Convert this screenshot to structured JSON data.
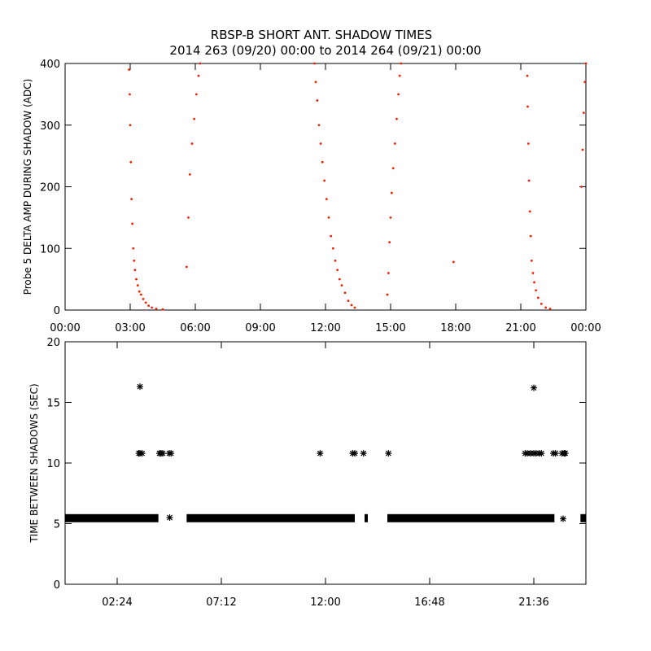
{
  "title_line1": "RBSP-B SHORT ANT. SHADOW TIMES",
  "title_line2": "2014 263 (09/20) 00:00 to 2014 264 (09/21) 00:00",
  "colors": {
    "points": "#ee2200",
    "stars": "#000000",
    "axes": "#000000"
  },
  "chart_data": [
    {
      "type": "scatter",
      "ylabel": "Probe 5 DELTA AMP DURING SHADOW (ADC)",
      "xlabel": "",
      "xlim": [
        0,
        24
      ],
      "ylim": [
        0,
        400
      ],
      "x_unit": "hours",
      "xtick_values": [
        0,
        3,
        6,
        9,
        12,
        15,
        18,
        21,
        24
      ],
      "xtick_labels": [
        "00:00",
        "03:00",
        "06:00",
        "09:00",
        "12:00",
        "15:00",
        "18:00",
        "21:00",
        "00:00"
      ],
      "ytick_values": [
        0,
        100,
        200,
        300,
        400
      ],
      "ytick_labels": [
        "0",
        "100",
        "200",
        "300",
        "400"
      ],
      "marker": "dot",
      "series": [
        {
          "color": "#ee2200",
          "x": [
            2.95,
            2.98,
            3.0,
            3.03,
            3.06,
            3.1,
            3.14,
            3.18,
            3.22,
            3.28,
            3.35,
            3.42,
            3.5,
            3.6,
            3.72,
            3.85,
            4.0,
            4.2,
            4.5,
            5.6,
            5.68,
            5.75,
            5.85,
            5.95,
            6.05,
            6.15,
            6.22,
            11.5,
            11.55,
            11.62,
            11.7,
            11.78,
            11.86,
            11.95,
            12.05,
            12.15,
            12.25,
            12.35,
            12.45,
            12.55,
            12.65,
            12.75,
            12.9,
            13.05,
            13.2,
            13.35,
            14.85,
            14.9,
            14.95,
            15.0,
            15.05,
            15.12,
            15.2,
            15.28,
            15.36,
            15.42,
            15.48,
            17.9,
            21.3,
            21.32,
            21.35,
            21.38,
            21.42,
            21.46,
            21.5,
            21.56,
            21.62,
            21.7,
            21.8,
            21.95,
            22.15,
            22.35,
            23.8,
            23.85,
            23.9,
            23.95,
            24.0
          ],
          "y": [
            390,
            350,
            300,
            240,
            180,
            140,
            100,
            80,
            65,
            50,
            40,
            30,
            25,
            18,
            12,
            7,
            4,
            2,
            1,
            70,
            150,
            220,
            270,
            310,
            350,
            380,
            400,
            400,
            370,
            340,
            300,
            270,
            240,
            210,
            180,
            150,
            120,
            100,
            80,
            65,
            50,
            40,
            28,
            15,
            8,
            4,
            25,
            60,
            110,
            150,
            190,
            230,
            270,
            310,
            350,
            380,
            400,
            78,
            380,
            330,
            270,
            210,
            160,
            120,
            80,
            60,
            45,
            32,
            20,
            10,
            4,
            2,
            200,
            260,
            320,
            370,
            400
          ]
        }
      ]
    },
    {
      "type": "scatter",
      "ylabel": "TIME BETWEEN SHADOWS (SEC)",
      "xlabel": "",
      "xlim": [
        0,
        24
      ],
      "ylim": [
        0,
        20
      ],
      "x_unit": "hours",
      "xtick_values": [
        2.4,
        7.2,
        12.0,
        16.8,
        21.6
      ],
      "xtick_labels": [
        "02:24",
        "07:12",
        "12:00",
        "16:48",
        "21:36"
      ],
      "ytick_values": [
        0,
        5,
        10,
        15,
        20
      ],
      "ytick_labels": [
        "0",
        "5",
        "10",
        "15",
        "20"
      ],
      "marker": "star",
      "series": [
        {
          "color": "#000000",
          "baseline_value": 5.45,
          "baseline_segments": [
            [
              0.0,
              4.3
            ],
            [
              5.6,
              13.35
            ],
            [
              13.8,
              13.95
            ],
            [
              14.85,
              22.55
            ],
            [
              23.75,
              24.0
            ]
          ],
          "x": [
            3.4,
            3.45,
            3.55,
            4.35,
            4.42,
            4.5,
            4.8,
            4.88,
            4.82,
            11.75,
            13.25,
            13.35,
            13.75,
            14.9,
            21.2,
            21.3,
            21.45,
            21.6,
            21.7,
            21.85,
            21.95,
            22.5,
            22.6,
            22.9,
            23.0,
            23.05,
            3.45,
            21.6,
            22.95
          ],
          "y": [
            10.8,
            10.8,
            10.8,
            10.8,
            10.8,
            10.8,
            10.8,
            10.8,
            5.5,
            10.8,
            10.8,
            10.8,
            10.8,
            10.8,
            10.8,
            10.8,
            10.8,
            10.8,
            10.8,
            10.8,
            10.8,
            10.8,
            10.8,
            10.8,
            10.8,
            10.8,
            16.3,
            16.2,
            5.4
          ]
        }
      ]
    }
  ]
}
